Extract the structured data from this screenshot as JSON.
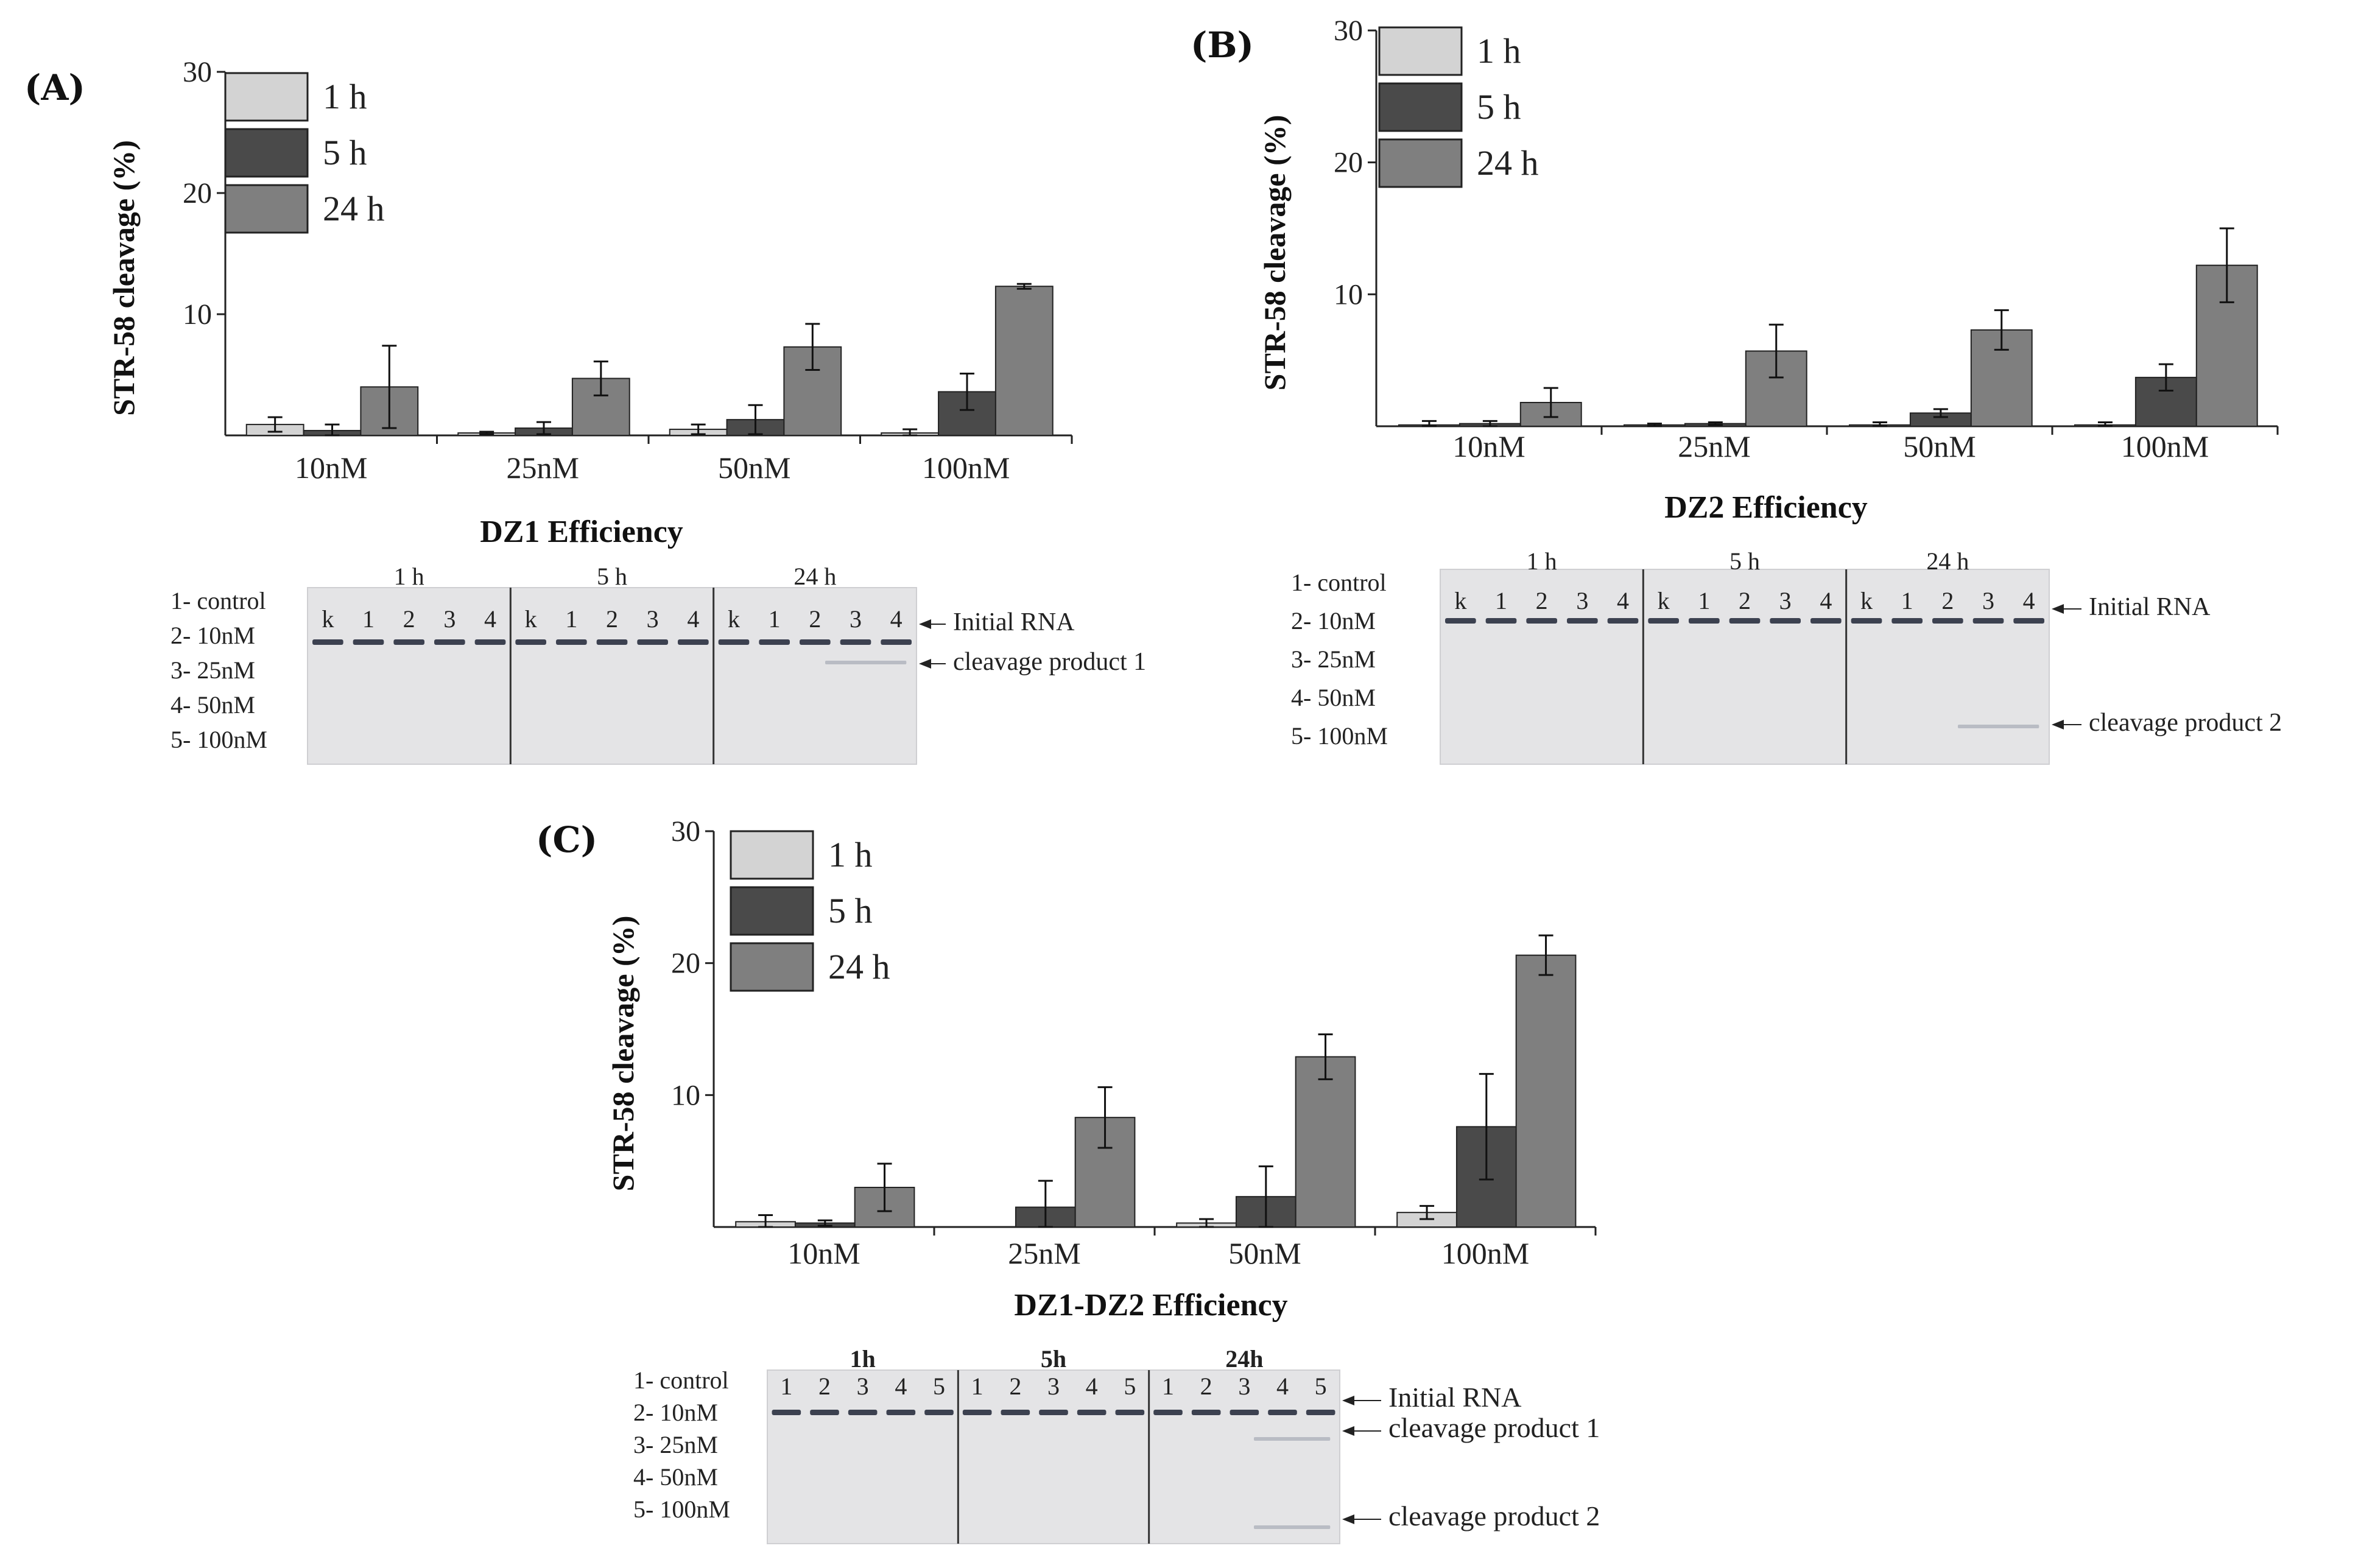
{
  "chart_data": [
    {
      "panel": "(A)",
      "type": "bar",
      "title": "DZ1 Efficiency",
      "ylabel": "STR-58 cleavage (%)",
      "xlabel": "",
      "ylim": [
        0,
        30
      ],
      "yticks": [
        10,
        20,
        30
      ],
      "categories": [
        "10nM",
        "25nM",
        "50nM",
        "100nM"
      ],
      "legend": [
        "1 h",
        "5 h",
        "24 h"
      ],
      "legend_position": "top-left",
      "series": [
        {
          "name": "1 h",
          "color": "#d3d3d3",
          "values": [
            0.9,
            0.2,
            0.5,
            0.2
          ],
          "errors": [
            0.6,
            0.1,
            0.4,
            0.3
          ]
        },
        {
          "name": "5 h",
          "color": "#4a4a4a",
          "values": [
            0.4,
            0.6,
            1.3,
            3.6
          ],
          "errors": [
            0.5,
            0.5,
            1.2,
            1.5
          ]
        },
        {
          "name": "24 h",
          "color": "#7f7f7f",
          "values": [
            4.0,
            4.7,
            7.3,
            12.3
          ],
          "errors": [
            3.4,
            1.4,
            1.9,
            0.2
          ]
        }
      ],
      "gel": {
        "lane_key": [
          "1- control",
          "2- 10nM",
          "3- 25nM",
          "4- 50nM",
          "5- 100nM"
        ],
        "groups": [
          {
            "label": "1 h",
            "lanes": [
              "k",
              "1",
              "2",
              "3",
              "4"
            ]
          },
          {
            "label": "5 h",
            "lanes": [
              "k",
              "1",
              "2",
              "3",
              "4"
            ]
          },
          {
            "label": "24 h",
            "lanes": [
              "k",
              "1",
              "2",
              "3",
              "4"
            ]
          }
        ],
        "annotations": [
          "Initial RNA",
          "cleavage product 1"
        ]
      }
    },
    {
      "panel": "(B)",
      "type": "bar",
      "title": "DZ2 Efficiency",
      "ylabel": "STR-58 cleavage (%)",
      "xlabel": "",
      "ylim": [
        0,
        30
      ],
      "yticks": [
        10,
        20,
        30
      ],
      "categories": [
        "10nM",
        "25nM",
        "50nM",
        "100nM"
      ],
      "legend": [
        "1 h",
        "5 h",
        "24 h"
      ],
      "legend_position": "top-left",
      "series": [
        {
          "name": "1 h",
          "color": "#d3d3d3",
          "values": [
            0.1,
            0.1,
            0.1,
            0.1
          ],
          "errors": [
            0.3,
            0.1,
            0.2,
            0.2
          ]
        },
        {
          "name": "5 h",
          "color": "#4a4a4a",
          "values": [
            0.2,
            0.2,
            1.0,
            3.7
          ],
          "errors": [
            0.2,
            0.1,
            0.3,
            1.0
          ]
        },
        {
          "name": "24 h",
          "color": "#7f7f7f",
          "values": [
            1.8,
            5.7,
            7.3,
            12.2
          ],
          "errors": [
            1.1,
            2.0,
            1.5,
            2.8
          ]
        }
      ],
      "gel": {
        "lane_key": [
          "1- control",
          "2- 10nM",
          "3- 25nM",
          "4- 50nM",
          "5- 100nM"
        ],
        "groups": [
          {
            "label": "1 h",
            "lanes": [
              "k",
              "1",
              "2",
              "3",
              "4"
            ]
          },
          {
            "label": "5 h",
            "lanes": [
              "k",
              "1",
              "2",
              "3",
              "4"
            ]
          },
          {
            "label": "24 h",
            "lanes": [
              "k",
              "1",
              "2",
              "3",
              "4"
            ]
          }
        ],
        "annotations": [
          "Initial RNA",
          "cleavage product 2"
        ]
      }
    },
    {
      "panel": "(C)",
      "type": "bar",
      "title": "DZ1-DZ2 Efficiency",
      "ylabel": "STR-58 cleavage (%)",
      "xlabel": "",
      "ylim": [
        0,
        30
      ],
      "yticks": [
        10,
        20,
        30
      ],
      "categories": [
        "10nM",
        "25nM",
        "50nM",
        "100nM"
      ],
      "legend": [
        "1 h",
        "5 h",
        "24 h"
      ],
      "legend_position": "top-left",
      "series": [
        {
          "name": "1 h",
          "color": "#d3d3d3",
          "values": [
            0.4,
            0.0,
            0.3,
            1.1
          ],
          "errors": [
            0.5,
            0.0,
            0.3,
            0.5
          ]
        },
        {
          "name": "5 h",
          "color": "#4a4a4a",
          "values": [
            0.3,
            1.5,
            2.3,
            7.6
          ],
          "errors": [
            0.2,
            2.0,
            2.3,
            4.0
          ]
        },
        {
          "name": "24 h",
          "color": "#7f7f7f",
          "values": [
            3.0,
            8.3,
            12.9,
            20.6
          ],
          "errors": [
            1.8,
            2.3,
            1.7,
            1.5
          ]
        }
      ],
      "gel": {
        "lane_key": [
          "1- control",
          "2- 10nM",
          "3- 25nM",
          "4- 50nM",
          "5- 100nM"
        ],
        "groups": [
          {
            "label": "1h",
            "lanes": [
              "1",
              "2",
              "3",
              "4",
              "5"
            ]
          },
          {
            "label": "5h",
            "lanes": [
              "1",
              "2",
              "3",
              "4",
              "5"
            ]
          },
          {
            "label": "24h",
            "lanes": [
              "1",
              "2",
              "3",
              "4",
              "5"
            ]
          }
        ],
        "annotations": [
          "Initial RNA",
          "cleavage product 1",
          "cleavage product 2"
        ]
      }
    }
  ]
}
